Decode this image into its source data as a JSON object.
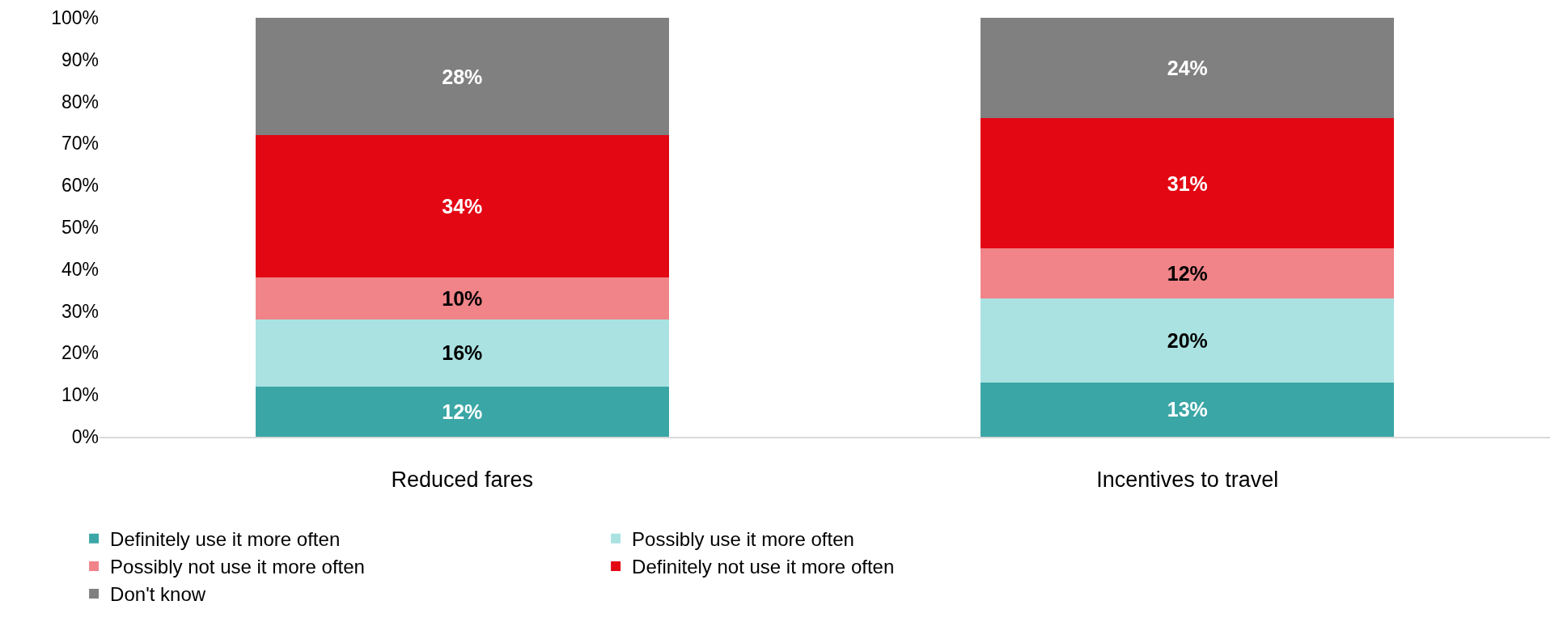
{
  "chart_data": {
    "type": "bar",
    "stacked": true,
    "categories": [
      "Reduced fares",
      "Incentives to travel"
    ],
    "series": [
      {
        "name": "Definitely use it more often",
        "color": "#3ba6a6",
        "values": [
          12,
          13
        ],
        "value_labels": [
          "12%",
          "13%"
        ]
      },
      {
        "name": "Possibly use it more often",
        "color": "#aae2e2",
        "values": [
          16,
          20
        ],
        "value_labels": [
          "16%",
          "20%"
        ]
      },
      {
        "name": "Possibly not use it more often",
        "color": "#f08488",
        "values": [
          10,
          12
        ],
        "value_labels": [
          "10%",
          "12%"
        ]
      },
      {
        "name": "Definitely not use it more often",
        "color": "#e30613",
        "values": [
          34,
          31
        ],
        "value_labels": [
          "34%",
          "31%"
        ]
      },
      {
        "name": "Don't know",
        "color": "#808080",
        "values": [
          28,
          24
        ],
        "value_labels": [
          "28%",
          "24%"
        ]
      }
    ],
    "ylim": [
      0,
      100
    ],
    "yticks": [
      {
        "value": 0,
        "label": "0%"
      },
      {
        "value": 10,
        "label": "10%"
      },
      {
        "value": 20,
        "label": "20%"
      },
      {
        "value": 30,
        "label": "30%"
      },
      {
        "value": 40,
        "label": "40%"
      },
      {
        "value": 50,
        "label": "50%"
      },
      {
        "value": 60,
        "label": "60%"
      },
      {
        "value": 70,
        "label": "70%"
      },
      {
        "value": 80,
        "label": "80%"
      },
      {
        "value": 90,
        "label": "90%"
      },
      {
        "value": 100,
        "label": "100%"
      }
    ],
    "grid": false,
    "legend": "bottom"
  }
}
